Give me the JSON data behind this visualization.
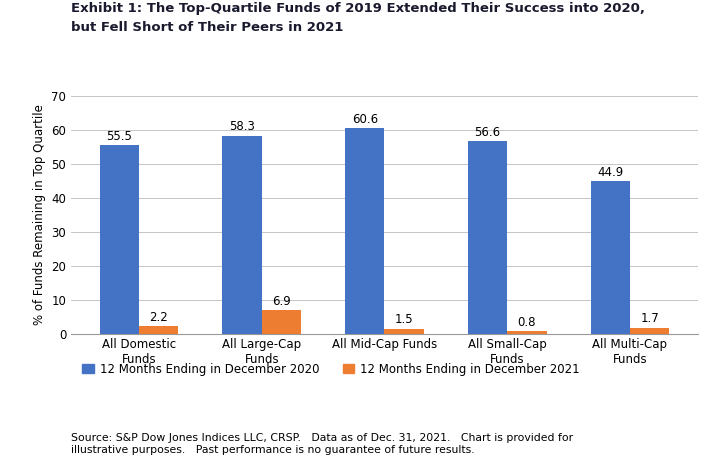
{
  "title_line1": "Exhibit 1: The Top-Quartile Funds of 2019 Extended Their Success into 2020,",
  "title_line2": "but Fell Short of Their Peers in 2021",
  "categories": [
    "All Domestic\nFunds",
    "All Large-Cap\nFunds",
    "All Mid-Cap Funds",
    "All Small-Cap\nFunds",
    "All Multi-Cap\nFunds"
  ],
  "values_2020": [
    55.5,
    58.3,
    60.6,
    56.6,
    44.9
  ],
  "values_2021": [
    2.2,
    6.9,
    1.5,
    0.8,
    1.7
  ],
  "color_2020": "#4472C4",
  "color_2021": "#ED7D31",
  "ylabel": "% of Funds Remaining in Top Quartile",
  "ylim": [
    0,
    70
  ],
  "yticks": [
    0,
    10,
    20,
    30,
    40,
    50,
    60,
    70
  ],
  "legend_label_2020": "12 Months Ending in December 2020",
  "legend_label_2021": "12 Months Ending in December 2021",
  "source_text": "Source: S&P Dow Jones Indices LLC, CRSP.   Data as of Dec. 31, 2021.   Chart is provided for\nillustrative purposes.   Past performance is no guarantee of future results.",
  "bar_width": 0.32,
  "title_fontsize": 9.5,
  "label_fontsize": 8.5,
  "tick_fontsize": 8.5,
  "value_fontsize": 8.5,
  "source_fontsize": 7.8,
  "background_color": "#FFFFFF",
  "title_color": "#1A1A2E",
  "grid_color": "#BBBBBB"
}
